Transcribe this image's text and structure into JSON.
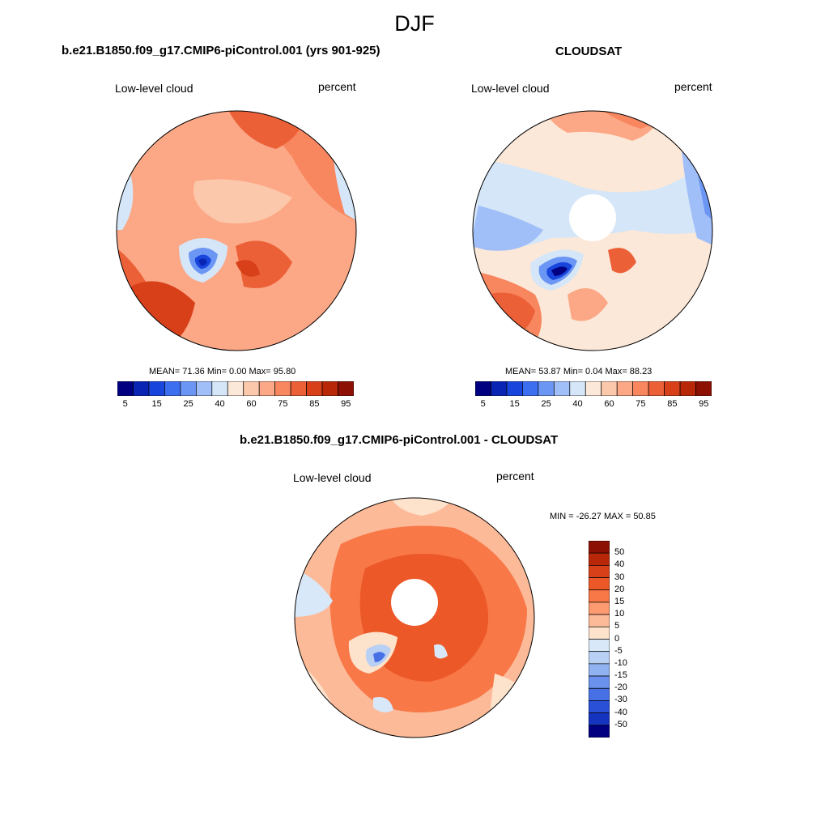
{
  "season": "DJF",
  "panels": [
    {
      "title": "b.e21.B1850.f09_g17.CMIP6-piControl.001 (yrs 901-925)",
      "variable": "Low-level cloud",
      "units": "percent",
      "stats": "MEAN=  71.36  Min=   0.00  Max=  95.80",
      "pole_hole": false
    },
    {
      "title": "CLOUDSAT",
      "variable": "Low-level cloud",
      "units": "percent",
      "stats": "MEAN=  53.87  Min=   0.04  Max=  88.23",
      "pole_hole": true
    },
    {
      "title": "b.e21.B1850.f09_g17.CMIP6-piControl.001 - CLOUDSAT",
      "variable": "Low-level cloud",
      "units": "percent",
      "stats": "MIN = -26.27 MAX =  50.85",
      "pole_hole": true
    }
  ],
  "colorbar_abs": {
    "colors": [
      "#000080",
      "#0a24b4",
      "#1846dc",
      "#3c6ef0",
      "#6c96f4",
      "#a0bef8",
      "#d4e6f8",
      "#fce8d8",
      "#fcc8ac",
      "#fca886",
      "#f8865e",
      "#ec6038",
      "#d8401a",
      "#b82808",
      "#8c1004"
    ],
    "tick_labels": [
      "5",
      "15",
      "25",
      "40",
      "60",
      "75",
      "85",
      "95"
    ]
  },
  "colorbar_diff": {
    "colors": [
      "#8c1004",
      "#b82808",
      "#d8401a",
      "#ec5828",
      "#f87848",
      "#fc9a70",
      "#fcba98",
      "#fde2cc",
      "#d8e8f8",
      "#b8d0f4",
      "#90b2f0",
      "#6a92ec",
      "#4670e4",
      "#2a50d8",
      "#1434c0",
      "#000080"
    ],
    "tick_labels": [
      "50",
      "40",
      "30",
      "20",
      "15",
      "10",
      "5",
      "0",
      "-5",
      "-10",
      "-15",
      "-20",
      "-30",
      "-40",
      "-50"
    ]
  }
}
